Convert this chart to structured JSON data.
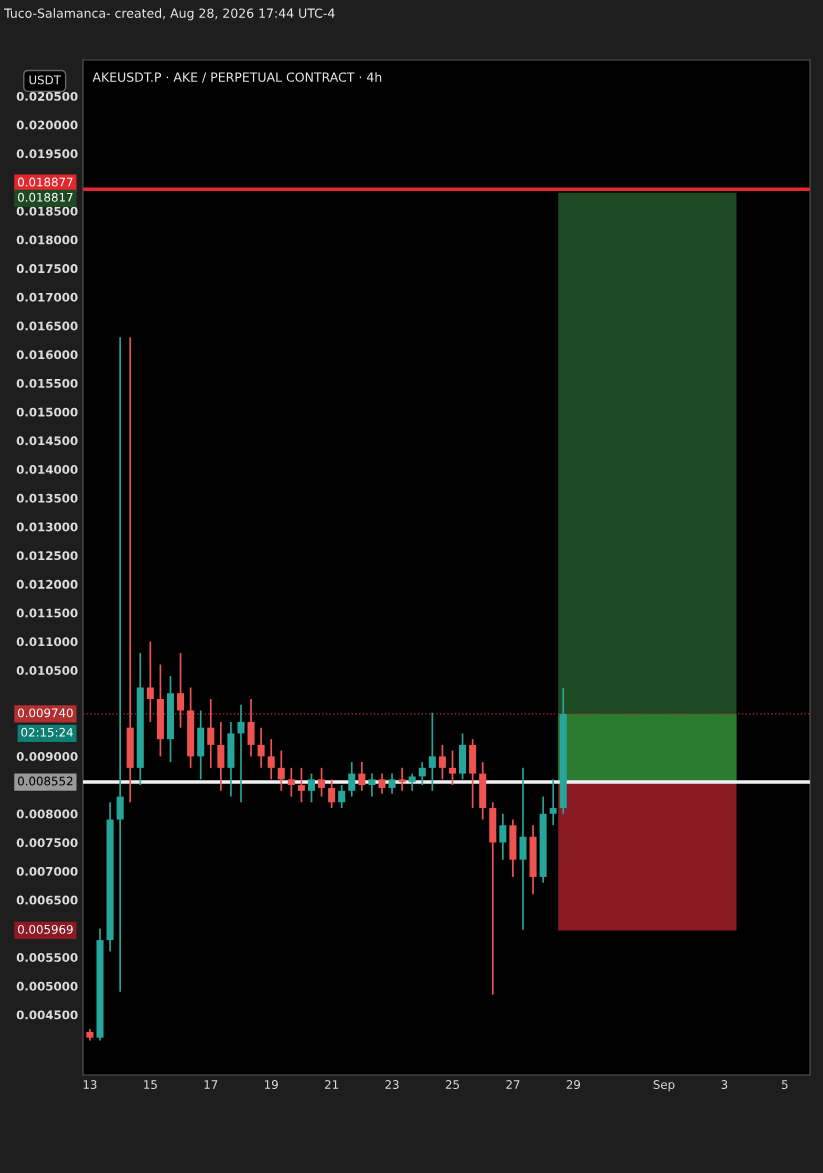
{
  "chart_data": {
    "type": "candlestick",
    "title": "AKEUSDT.P · AKE / PERPETUAL CONTRACT · 4h",
    "annotations": [
      "Tuco-Salamanca- created, Aug 28, 2026 17:44 UTC-4",
      "USDT",
      "02:15:24",
      "0.018817",
      "0.005969"
    ],
    "x": [
      "2026-08-13T00:00",
      "2026-08-13T08:00",
      "2026-08-13T16:00",
      "2026-08-14T00:00",
      "2026-08-14T08:00",
      "2026-08-14T16:00",
      "2026-08-15T00:00",
      "2026-08-15T08:00",
      "2026-08-15T16:00",
      "2026-08-16T00:00",
      "2026-08-16T08:00",
      "2026-08-16T16:00",
      "2026-08-17T00:00",
      "2026-08-17T08:00",
      "2026-08-17T16:00",
      "2026-08-18T00:00",
      "2026-08-18T08:00",
      "2026-08-18T16:00",
      "2026-08-19T00:00",
      "2026-08-19T08:00",
      "2026-08-19T16:00",
      "2026-08-20T00:00",
      "2026-08-20T08:00",
      "2026-08-20T16:00",
      "2026-08-21T00:00",
      "2026-08-21T08:00",
      "2026-08-21T16:00",
      "2026-08-22T00:00",
      "2026-08-22T08:00",
      "2026-08-22T16:00",
      "2026-08-23T00:00",
      "2026-08-23T08:00",
      "2026-08-23T16:00",
      "2026-08-24T00:00",
      "2026-08-24T08:00",
      "2026-08-24T16:00",
      "2026-08-25T00:00",
      "2026-08-25T08:00",
      "2026-08-25T16:00",
      "2026-08-26T00:00",
      "2026-08-26T08:00",
      "2026-08-26T16:00",
      "2026-08-27T00:00",
      "2026-08-27T08:00",
      "2026-08-27T16:00",
      "2026-08-28T00:00",
      "2026-08-28T08:00",
      "2026-08-28T16:00"
    ],
    "ohlc": [
      [
        0.0042,
        0.00425,
        0.00405,
        0.0041
      ],
      [
        0.0041,
        0.006,
        0.00405,
        0.0058
      ],
      [
        0.0058,
        0.0082,
        0.0056,
        0.0079
      ],
      [
        0.0079,
        0.0163,
        0.0049,
        0.0083
      ],
      [
        0.0095,
        0.0163,
        0.0082,
        0.0088
      ],
      [
        0.0088,
        0.0108,
        0.0085,
        0.0102
      ],
      [
        0.0102,
        0.011,
        0.0096,
        0.01
      ],
      [
        0.01,
        0.0106,
        0.009,
        0.0093
      ],
      [
        0.0093,
        0.0104,
        0.0089,
        0.0101
      ],
      [
        0.0101,
        0.0108,
        0.0095,
        0.0098
      ],
      [
        0.0098,
        0.0102,
        0.0088,
        0.009
      ],
      [
        0.009,
        0.0098,
        0.0086,
        0.0095
      ],
      [
        0.0095,
        0.01,
        0.0088,
        0.0092
      ],
      [
        0.0092,
        0.0096,
        0.0084,
        0.0088
      ],
      [
        0.0088,
        0.0096,
        0.0083,
        0.0094
      ],
      [
        0.0094,
        0.0099,
        0.0082,
        0.0096
      ],
      [
        0.0096,
        0.01,
        0.009,
        0.0092
      ],
      [
        0.0092,
        0.0095,
        0.0088,
        0.009
      ],
      [
        0.009,
        0.0093,
        0.0086,
        0.0088
      ],
      [
        0.0088,
        0.0091,
        0.0084,
        0.0086
      ],
      [
        0.0086,
        0.0088,
        0.0083,
        0.0085
      ],
      [
        0.0085,
        0.0088,
        0.0082,
        0.0084
      ],
      [
        0.0084,
        0.0087,
        0.0082,
        0.0086
      ],
      [
        0.0086,
        0.0088,
        0.0083,
        0.00845
      ],
      [
        0.00845,
        0.0086,
        0.0081,
        0.0082
      ],
      [
        0.0082,
        0.0085,
        0.0081,
        0.0084
      ],
      [
        0.0084,
        0.0089,
        0.0083,
        0.0087
      ],
      [
        0.0087,
        0.0089,
        0.0084,
        0.0085
      ],
      [
        0.0085,
        0.0087,
        0.0083,
        0.0086
      ],
      [
        0.0086,
        0.0087,
        0.00835,
        0.00845
      ],
      [
        0.00845,
        0.0087,
        0.00835,
        0.0086
      ],
      [
        0.0086,
        0.0088,
        0.0084,
        0.00855
      ],
      [
        0.00855,
        0.0087,
        0.0084,
        0.00865
      ],
      [
        0.00865,
        0.0089,
        0.0085,
        0.0088
      ],
      [
        0.0088,
        0.00976,
        0.0084,
        0.009
      ],
      [
        0.009,
        0.0092,
        0.0086,
        0.0088
      ],
      [
        0.0088,
        0.0091,
        0.0085,
        0.0087
      ],
      [
        0.0087,
        0.0094,
        0.0086,
        0.0092
      ],
      [
        0.0092,
        0.0093,
        0.0081,
        0.0087
      ],
      [
        0.0087,
        0.0089,
        0.0079,
        0.0081
      ],
      [
        0.0081,
        0.0082,
        0.00485,
        0.0075
      ],
      [
        0.0075,
        0.008,
        0.0072,
        0.0078
      ],
      [
        0.0078,
        0.0079,
        0.0069,
        0.0072
      ],
      [
        0.0072,
        0.0088,
        0.00598,
        0.0076
      ],
      [
        0.0076,
        0.0078,
        0.0066,
        0.0069
      ],
      [
        0.0069,
        0.0083,
        0.0068,
        0.008
      ],
      [
        0.008,
        0.0086,
        0.0078,
        0.0081
      ],
      [
        0.0081,
        0.01019,
        0.008,
        0.00974
      ]
    ],
    "xlim": [
      "2026-08-12T18:30",
      "2026-09-05T20:00"
    ],
    "xticks": [
      {
        "value": "2026-08-13",
        "label": "13"
      },
      {
        "value": "2026-08-15",
        "label": "15"
      },
      {
        "value": "2026-08-17",
        "label": "17"
      },
      {
        "value": "2026-08-19",
        "label": "19"
      },
      {
        "value": "2026-08-21",
        "label": "21"
      },
      {
        "value": "2026-08-23",
        "label": "23"
      },
      {
        "value": "2026-08-25",
        "label": "25"
      },
      {
        "value": "2026-08-27",
        "label": "27"
      },
      {
        "value": "2026-08-29",
        "label": "29"
      },
      {
        "value": "2026-09-01",
        "label": "Sep"
      },
      {
        "value": "2026-09-03",
        "label": "3"
      },
      {
        "value": "2026-09-05",
        "label": "5"
      }
    ],
    "ylim": [
      0.00345,
      0.02113
    ],
    "yticks": [
      {
        "value": 0.0045,
        "label": "0.004500"
      },
      {
        "value": 0.005,
        "label": "0.005000"
      },
      {
        "value": 0.0055,
        "label": "0.005500"
      },
      {
        "value": 0.0065,
        "label": "0.006500"
      },
      {
        "value": 0.007,
        "label": "0.007000"
      },
      {
        "value": 0.0075,
        "label": "0.007500"
      },
      {
        "value": 0.008,
        "label": "0.008000"
      },
      {
        "value": 0.009,
        "label": "0.009000"
      },
      {
        "value": 0.0105,
        "label": "0.010500"
      },
      {
        "value": 0.011,
        "label": "0.011000"
      },
      {
        "value": 0.0115,
        "label": "0.011500"
      },
      {
        "value": 0.012,
        "label": "0.012000"
      },
      {
        "value": 0.0125,
        "label": "0.012500"
      },
      {
        "value": 0.013,
        "label": "0.013000"
      },
      {
        "value": 0.0135,
        "label": "0.013500"
      },
      {
        "value": 0.014,
        "label": "0.014000"
      },
      {
        "value": 0.0145,
        "label": "0.014500"
      },
      {
        "value": 0.015,
        "label": "0.015000"
      },
      {
        "value": 0.0155,
        "label": "0.015500"
      },
      {
        "value": 0.016,
        "label": "0.016000"
      },
      {
        "value": 0.0165,
        "label": "0.016500"
      },
      {
        "value": 0.017,
        "label": "0.017000"
      },
      {
        "value": 0.0175,
        "label": "0.017500"
      },
      {
        "value": 0.018,
        "label": "0.018000"
      },
      {
        "value": 0.0185,
        "label": "0.018500"
      },
      {
        "value": 0.0195,
        "label": "0.019500"
      },
      {
        "value": 0.02,
        "label": "0.020000"
      },
      {
        "value": 0.0205,
        "label": "0.020500"
      }
    ],
    "bands": [
      {
        "axis": "y",
        "from": 0.008552,
        "to": 0.018817,
        "color": "#1d4a22"
      },
      {
        "axis": "y",
        "from": 0.008552,
        "to": 0.00974,
        "color": "#2a7a30"
      },
      {
        "axis": "y",
        "from": 0.005969,
        "to": 0.008552,
        "color": "#8a1a24"
      }
    ],
    "ref_lines": [
      {
        "axis": "y",
        "value": 0.018877,
        "label": "0.018877",
        "color": "#e0282e",
        "line_style": "solid"
      },
      {
        "axis": "y",
        "value": 0.00974,
        "label": "0.009740",
        "color": "#b03030",
        "line_style": "dotted"
      },
      {
        "axis": "y",
        "value": 0.008552,
        "label": "0.008552",
        "color": "#f0f0f0",
        "line_style": "solid"
      }
    ],
    "grid": false
  }
}
